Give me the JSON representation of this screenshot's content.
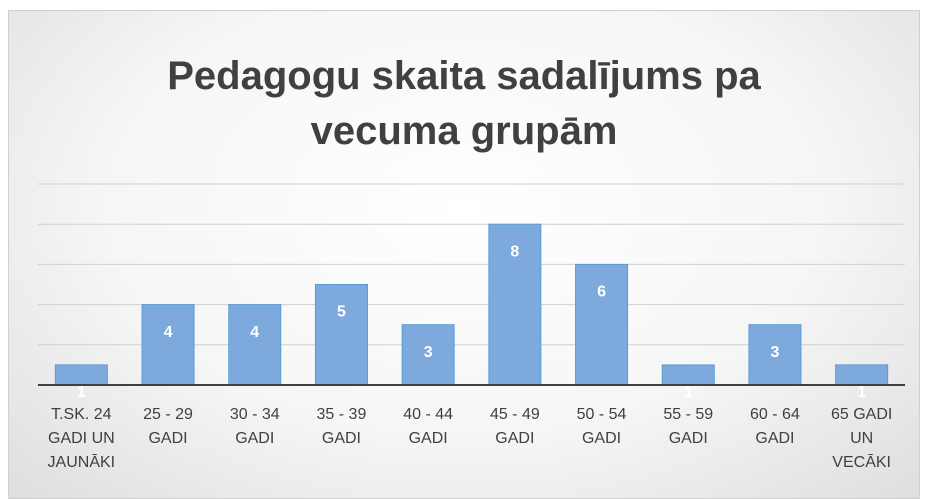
{
  "chart_data": {
    "type": "bar",
    "title": [
      "Pedagogu skaita sadalījums pa",
      "vecuma grupām"
    ],
    "categories": [
      "T.SK. 24 GADI UN JAUNĀKI",
      "25 - 29 GADI",
      "30 - 34 GADI",
      "35 - 39 GADI",
      "40 - 44 GADI",
      "45 - 49 GADI",
      "50 - 54 GADI",
      "55 - 59 GADI",
      "60 - 64 GADI",
      "65 GADI UN VECĀKI"
    ],
    "values": [
      1,
      4,
      4,
      5,
      3,
      8,
      6,
      1,
      3,
      1
    ],
    "color": "#7ea9dd",
    "ylim": [
      0,
      10
    ],
    "yticks": [
      0,
      2,
      4,
      6,
      8,
      10
    ],
    "grid": true
  }
}
